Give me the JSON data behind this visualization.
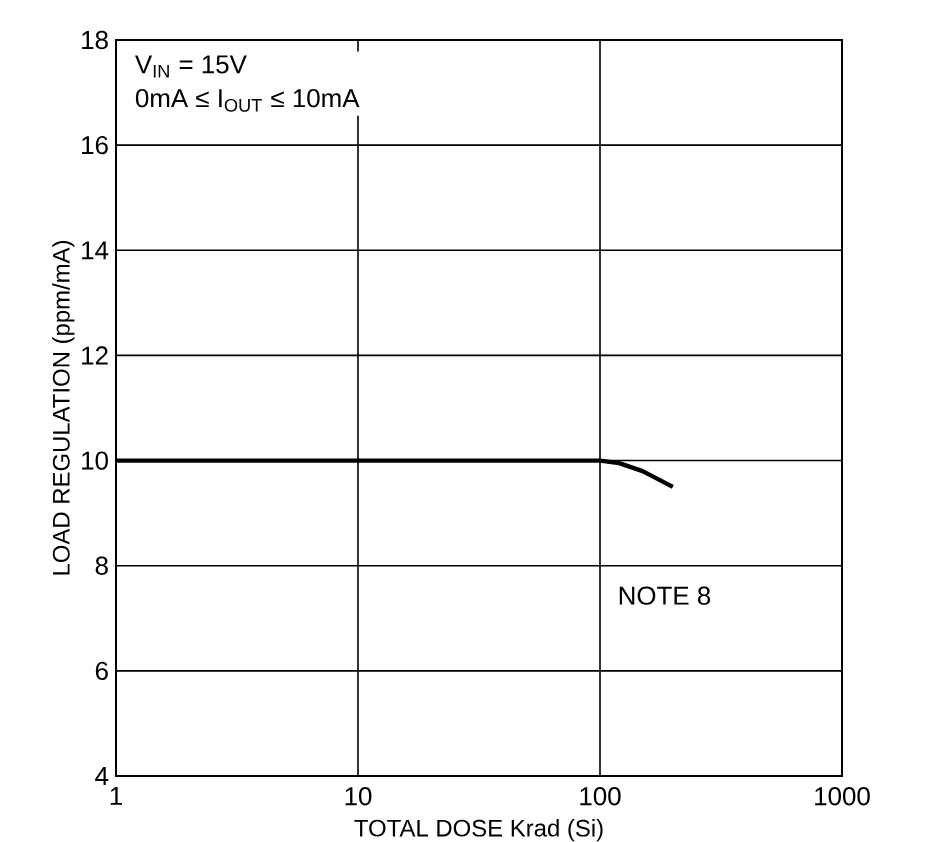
{
  "chart_data": {
    "type": "line",
    "xlabel": "TOTAL DOSE Krad (Si)",
    "ylabel": "LOAD REGULATION (ppm/mA)",
    "x": [
      1,
      100,
      120,
      150,
      200
    ],
    "series": [
      {
        "color": "#000000",
        "values": [
          10,
          10,
          9.95,
          9.8,
          9.5
        ]
      }
    ],
    "log": "x",
    "xlim": [
      1,
      1000
    ],
    "xticks": [
      1,
      10,
      100,
      1000
    ],
    "ylim": [
      4,
      18
    ],
    "yticks": [
      4,
      6,
      8,
      10,
      12,
      14,
      16,
      18
    ],
    "grid": true,
    "marker": "none",
    "line_style": "solid",
    "annotations": [
      "V$_{IN}$ = 15V",
      "0mA ≤ I$_{OUT}$ ≤ 10mA",
      "NOTE 8"
    ]
  }
}
